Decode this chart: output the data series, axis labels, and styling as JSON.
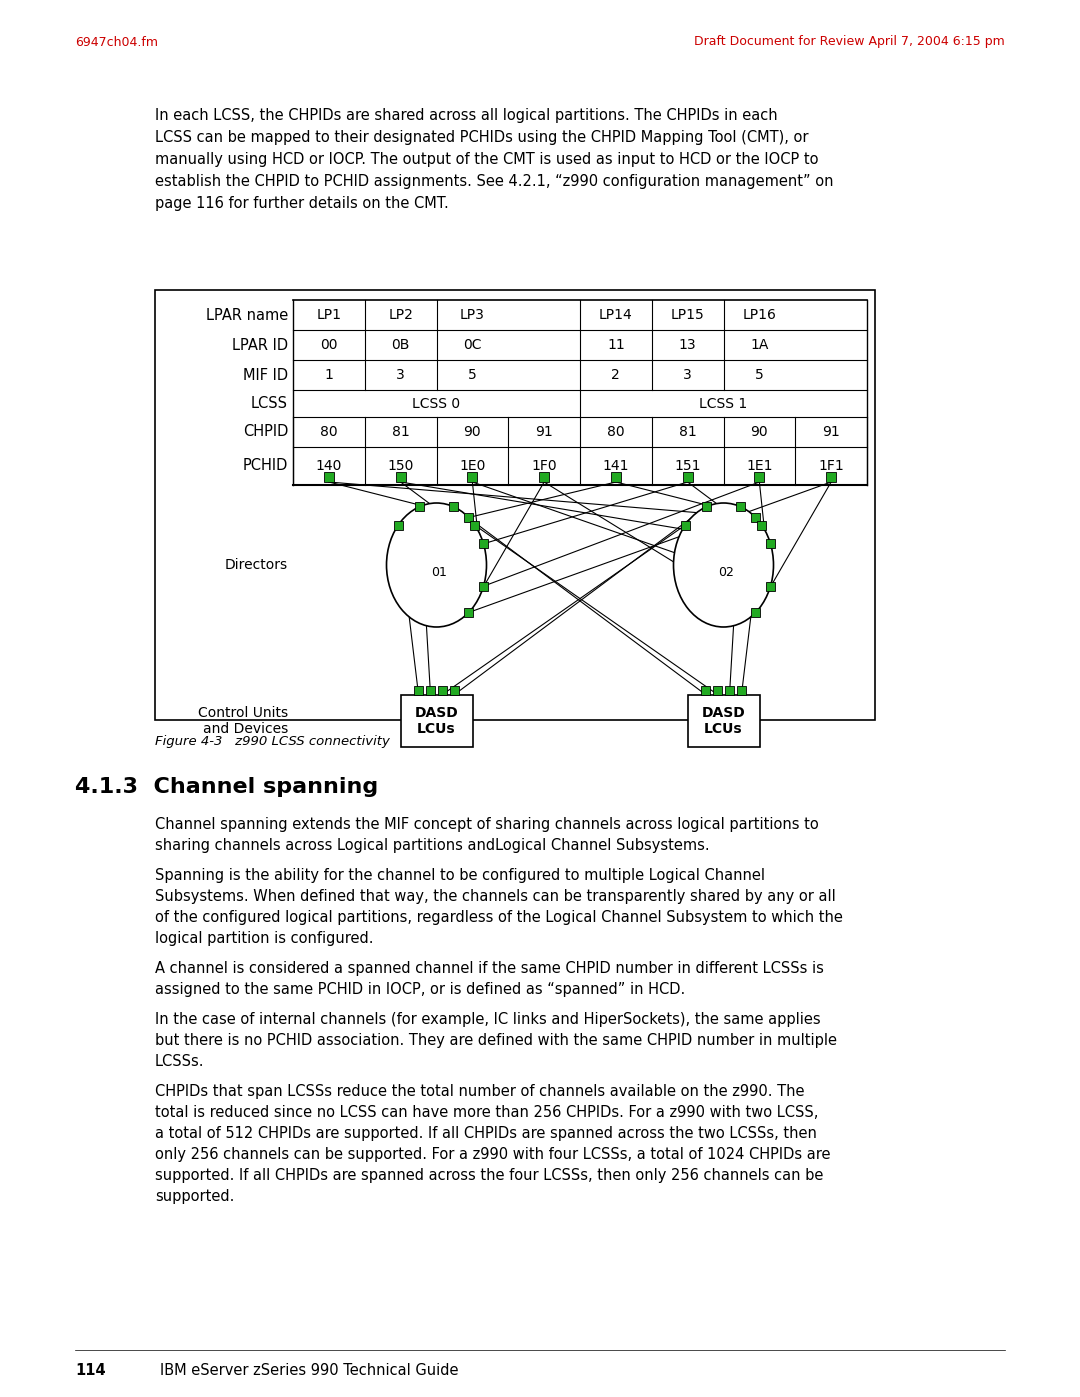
{
  "page_header_left": "6947ch04.fm",
  "page_header_right": "Draft Document for Review April 7, 2004 6:15 pm",
  "header_color": "#cc0000",
  "intro_text": "In each LCSS, the CHPIDs are shared across all logical partitions. The CHPIDs in each\nLCSS can be mapped to their designated PCHIDs using the CHPID Mapping Tool (CMT), or\nmanually using HCD or IOCP. The output of the CMT is used as input to HCD or the IOCP to\nestablish the CHPID to PCHID assignments. See 4.2.1, “z990 configuration management” on\npage 116 for further details on the CMT.",
  "table_row_labels": [
    "LPAR name",
    "LPAR ID",
    "MIF ID",
    "LCSS",
    "CHPID",
    "PCHID"
  ],
  "lpar_names": [
    "LP1",
    "LP2",
    "LP3",
    "LP14",
    "LP15",
    "LP16"
  ],
  "lpar_ids": [
    "00",
    "0B",
    "0C",
    "11",
    "13",
    "1A"
  ],
  "mif_ids": [
    "1",
    "3",
    "5",
    "2",
    "3",
    "5"
  ],
  "lcss_labels": [
    "LCSS 0",
    "LCSS 1"
  ],
  "chpid_values": [
    "80",
    "81",
    "90",
    "91",
    "80",
    "81",
    "90",
    "91"
  ],
  "pchid_values": [
    "140",
    "150",
    "1E0",
    "1F0",
    "141",
    "151",
    "1E1",
    "1F1"
  ],
  "director_labels": [
    "01",
    "02"
  ],
  "dasd_label": "DASD\nLCUs",
  "directors_label": "Directors",
  "control_units_label": "Control Units\nand Devices",
  "figure_caption": "Figure 4-3   z990 LCSS connectivity",
  "section_title": "4.1.3  Channel spanning",
  "body_paragraphs": [
    "Channel spanning extends the MIF concept of sharing channels across logical partitions to\nsharing channels across Logical partitions and​Logical Channel Subsystems.",
    "Spanning is the ability for the channel to be configured to multiple Logical Channel\nSubsystems. When defined that way, the channels can be transparently shared by any or all\nof the configured logical partitions, regardless of the Logical Channel Subsystem to which the\nlogical partition is configured.",
    "A channel is considered a spanned channel if the same CHPID number in different LCSSs is\nassigned to the same PCHID in IOCP, or is defined as “spanned” in HCD.",
    "In the case of internal channels (for example, IC links and HiperSockets), the same applies\nbut there is no PCHID association. They are defined with the same CHPID number in multiple\nLCSSs.",
    "CHPIDs that span LCSSs reduce the total number of channels available on the z990. The\ntotal is reduced since no LCSS can have more than 256 CHPIDs. For a z990 with two LCSS,\na total of 512 CHPIDs are supported. If all CHPIDs are spanned across the two LCSSs, then\nonly 256 channels can be supported. For a z990 with four LCSSs, a total of 1024 CHPIDs are\nsupported. If all CHPIDs are spanned across the four LCSSs, then only 256 channels can be\nsupported."
  ],
  "page_number": "114",
  "page_footer_text": "IBM eServer zSeries 990 Technical Guide",
  "green_color": "#22aa22",
  "bg_color": "#ffffff"
}
